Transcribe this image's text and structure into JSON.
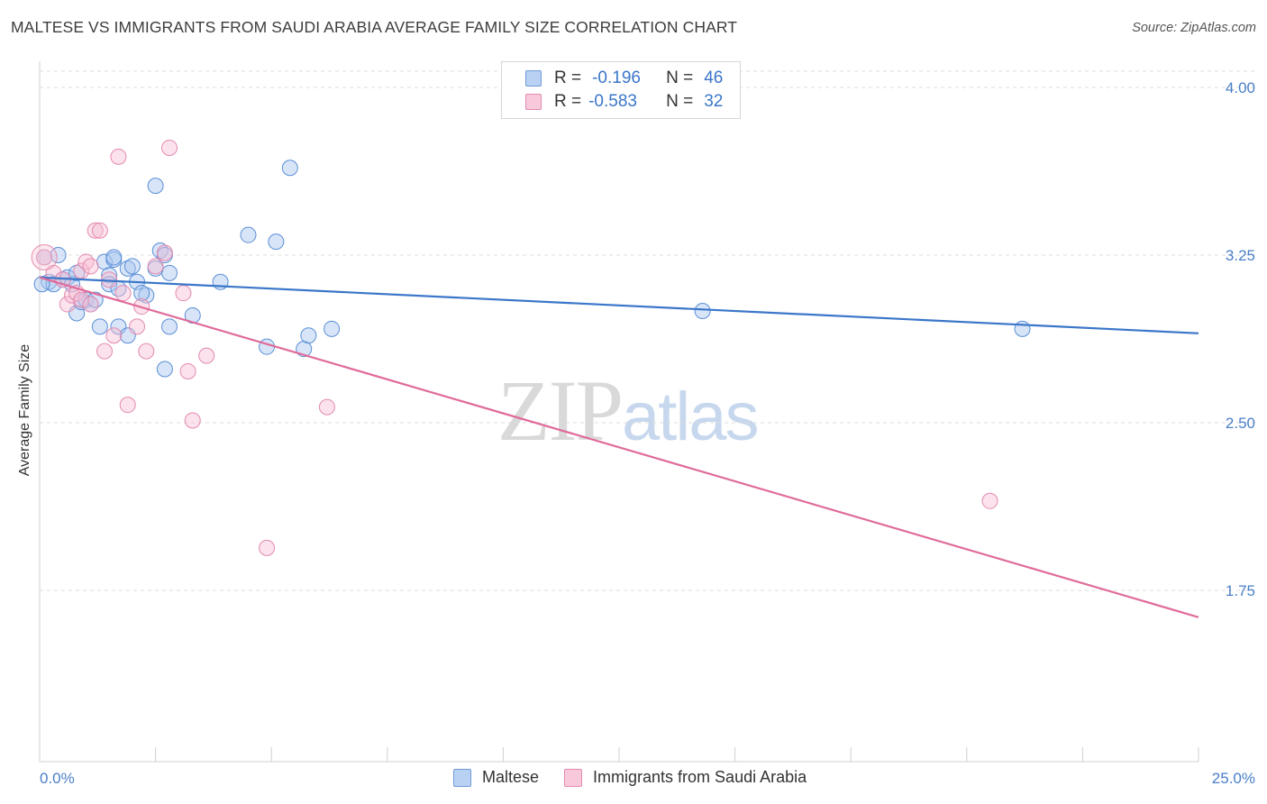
{
  "title": "MALTESE VS IMMIGRANTS FROM SAUDI ARABIA AVERAGE FAMILY SIZE CORRELATION CHART",
  "source": "Source: ZipAtlas.com",
  "watermark": {
    "zip": "ZIP",
    "atlas": "atlas"
  },
  "legend": {
    "rows": [
      {
        "r_key": "R =",
        "r_val": "-0.196",
        "n_key": "N =",
        "n_val": "46"
      },
      {
        "r_key": "R =",
        "r_val": "-0.583",
        "n_key": "N =",
        "n_val": "32"
      }
    ]
  },
  "chart_data": {
    "type": "scatter",
    "title": "MALTESE VS IMMIGRANTS FROM SAUDI ARABIA AVERAGE FAMILY SIZE CORRELATION CHART",
    "xlabel": "",
    "ylabel": "Average Family Size",
    "xlim": [
      0,
      25
    ],
    "ylim": [
      1.0,
      4.1
    ],
    "x_tick_labels": [
      "0.0%",
      "25.0%"
    ],
    "y_ticks": [
      4.0,
      3.25,
      2.5,
      1.75
    ],
    "y_tick_labels": [
      "4.00",
      "3.25",
      "2.50",
      "1.75"
    ],
    "grid": "horizontal dashed",
    "legend_position": "top-center",
    "series": [
      {
        "name": "Maltese",
        "color": "#5b8fd6",
        "fill": "#a9c6ef",
        "R": -0.196,
        "N": 46,
        "trend": [
          [
            0,
            3.15
          ],
          [
            25,
            2.9
          ]
        ],
        "points": [
          [
            0.1,
            3.24
          ],
          [
            0.2,
            3.13
          ],
          [
            0.3,
            3.12
          ],
          [
            0.4,
            3.25
          ],
          [
            0.5,
            3.14
          ],
          [
            0.6,
            3.15
          ],
          [
            0.7,
            3.12
          ],
          [
            0.8,
            3.17
          ],
          [
            0.8,
            2.99
          ],
          [
            0.9,
            3.04
          ],
          [
            1.0,
            3.05
          ],
          [
            1.1,
            3.03
          ],
          [
            1.3,
            2.93
          ],
          [
            1.4,
            3.22
          ],
          [
            1.5,
            3.16
          ],
          [
            1.5,
            3.12
          ],
          [
            1.6,
            3.23
          ],
          [
            1.6,
            3.24
          ],
          [
            1.7,
            3.1
          ],
          [
            1.7,
            2.93
          ],
          [
            1.9,
            3.19
          ],
          [
            1.9,
            2.89
          ],
          [
            2.0,
            3.2
          ],
          [
            2.1,
            3.13
          ],
          [
            2.3,
            3.07
          ],
          [
            2.5,
            3.19
          ],
          [
            2.5,
            3.56
          ],
          [
            2.6,
            3.27
          ],
          [
            2.7,
            3.25
          ],
          [
            2.7,
            2.74
          ],
          [
            2.8,
            3.17
          ],
          [
            2.8,
            2.93
          ],
          [
            3.3,
            2.98
          ],
          [
            3.9,
            3.13
          ],
          [
            4.5,
            3.34
          ],
          [
            4.9,
            2.84
          ],
          [
            5.1,
            3.31
          ],
          [
            5.4,
            3.64
          ],
          [
            5.7,
            2.83
          ],
          [
            5.8,
            2.89
          ],
          [
            6.3,
            2.92
          ],
          [
            14.3,
            3.0
          ],
          [
            21.2,
            2.92
          ],
          [
            0.05,
            3.12
          ],
          [
            1.2,
            3.05
          ],
          [
            2.2,
            3.08
          ]
        ]
      },
      {
        "name": "Immigrants from Saudi Arabia",
        "color": "#e48ab0",
        "fill": "#f6bfd4",
        "R": -0.583,
        "N": 32,
        "trend": [
          [
            0,
            3.15
          ],
          [
            25,
            1.63
          ]
        ],
        "points": [
          [
            0.1,
            3.24
          ],
          [
            0.3,
            3.17
          ],
          [
            0.5,
            3.14
          ],
          [
            0.6,
            3.03
          ],
          [
            0.7,
            3.07
          ],
          [
            0.8,
            3.08
          ],
          [
            0.9,
            3.05
          ],
          [
            0.9,
            3.18
          ],
          [
            1.0,
            3.22
          ],
          [
            1.1,
            3.03
          ],
          [
            1.1,
            3.2
          ],
          [
            1.2,
            3.36
          ],
          [
            1.3,
            3.36
          ],
          [
            1.4,
            2.82
          ],
          [
            1.5,
            3.14
          ],
          [
            1.6,
            2.89
          ],
          [
            1.7,
            3.69
          ],
          [
            1.8,
            3.08
          ],
          [
            1.9,
            2.58
          ],
          [
            2.1,
            2.93
          ],
          [
            2.2,
            3.02
          ],
          [
            2.3,
            2.82
          ],
          [
            2.5,
            3.2
          ],
          [
            2.7,
            3.26
          ],
          [
            2.8,
            3.73
          ],
          [
            3.1,
            3.08
          ],
          [
            3.2,
            2.73
          ],
          [
            3.3,
            2.51
          ],
          [
            3.6,
            2.8
          ],
          [
            4.9,
            1.94
          ],
          [
            6.2,
            2.57
          ],
          [
            20.5,
            2.15
          ]
        ]
      }
    ]
  },
  "bottom_legend": [
    {
      "label": "Maltese"
    },
    {
      "label": "Immigrants from Saudi Arabia"
    }
  ]
}
